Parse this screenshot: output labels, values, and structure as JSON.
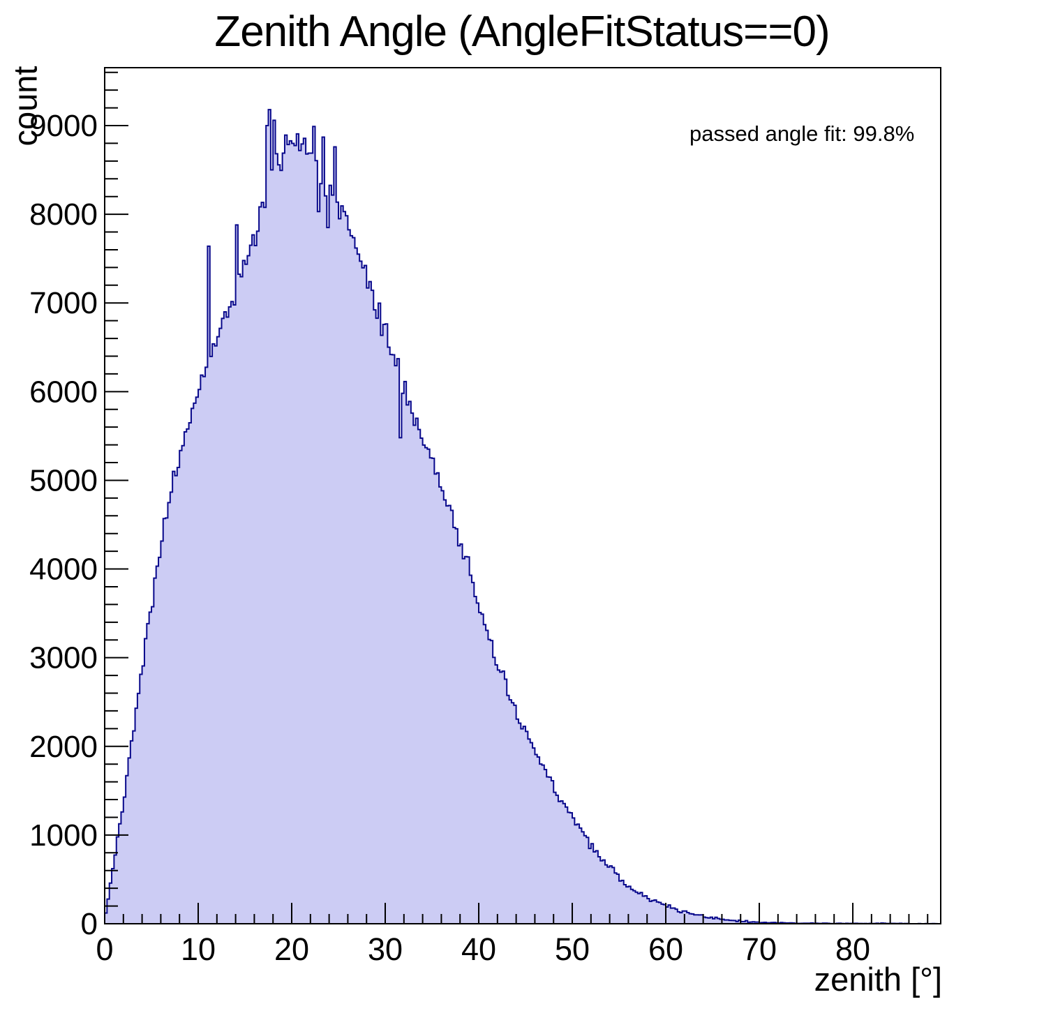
{
  "page": {
    "background": "#ffffff"
  },
  "chart_data": {
    "type": "bar",
    "subtype": "filled-step-histogram",
    "title": "Zenith Angle (AngleFitStatus==0)",
    "xlabel": "zenith [°]",
    "ylabel": "count",
    "annotation": "passed angle fit: 99.8%",
    "xlim": [
      0,
      89.4
    ],
    "ylim": [
      0,
      9653
    ],
    "x_major_ticks": [
      0,
      10,
      20,
      30,
      40,
      50,
      60,
      70,
      80
    ],
    "x_minor_step": 2,
    "y_major_ticks": [
      0,
      1000,
      2000,
      3000,
      4000,
      5000,
      6000,
      7000,
      8000,
      9000
    ],
    "y_minor_step": 200,
    "grid": false,
    "legend_position": "none",
    "bin_width_deg": 0.25,
    "envelope_x_deg": [
      0,
      1,
      2,
      3,
      4,
      5,
      6,
      7,
      8,
      9,
      10,
      11,
      12,
      13,
      14,
      15,
      16,
      17,
      18,
      19,
      20,
      21,
      22,
      23,
      24,
      25,
      26,
      27,
      28,
      29,
      30,
      31,
      32,
      33,
      34,
      35,
      36,
      37,
      38,
      39,
      40,
      41,
      42,
      43,
      44,
      45,
      46,
      47,
      48,
      49,
      50,
      51,
      52,
      53,
      54,
      55,
      56,
      57,
      58,
      59,
      60,
      61,
      62,
      63,
      64,
      65,
      66,
      67,
      68,
      69,
      70,
      71,
      72,
      73,
      74,
      75,
      76,
      77,
      78,
      79,
      80,
      81,
      82,
      83,
      84,
      85,
      86,
      87,
      88,
      89
    ],
    "envelope_counts": [
      30,
      700,
      1400,
      2150,
      2900,
      3600,
      4250,
      4800,
      5250,
      5650,
      6000,
      6320,
      6620,
      6900,
      7160,
      7400,
      7700,
      8050,
      8400,
      8700,
      8870,
      8870,
      8700,
      8450,
      8250,
      8100,
      7850,
      7550,
      7270,
      7000,
      6670,
      6380,
      6030,
      5720,
      5460,
      5250,
      4910,
      4650,
      4300,
      4020,
      3570,
      3270,
      2870,
      2630,
      2370,
      2160,
      1940,
      1740,
      1550,
      1370,
      1210,
      1030,
      870,
      740,
      640,
      530,
      430,
      350,
      290,
      245,
      205,
      165,
      135,
      110,
      88,
      65,
      48,
      38,
      30,
      22,
      16,
      13,
      10,
      8,
      7,
      6,
      5,
      4,
      4,
      3,
      3,
      2,
      2,
      6,
      3,
      5,
      2,
      1,
      1,
      0
    ],
    "peak": {
      "x_deg": 17.7,
      "count": 9180
    },
    "spikes": [
      {
        "x": 11.2,
        "y": 7640
      },
      {
        "x": 14.1,
        "y": 7880
      },
      {
        "x": 17.45,
        "y": 9000
      },
      {
        "x": 17.7,
        "y": 9180
      },
      {
        "x": 17.95,
        "y": 8500
      },
      {
        "x": 18.2,
        "y": 9060
      },
      {
        "x": 22.3,
        "y": 8990
      },
      {
        "x": 22.8,
        "y": 8030
      },
      {
        "x": 23.4,
        "y": 8870
      },
      {
        "x": 23.9,
        "y": 7850
      },
      {
        "x": 24.5,
        "y": 8760
      },
      {
        "x": 25.2,
        "y": 7950
      },
      {
        "x": 31.6,
        "y": 5480
      }
    ],
    "noise": {
      "seed": 42,
      "coeff": 2.6
    },
    "colors": {
      "fill": "#ccccf4",
      "line": "#08088b",
      "axis": "#000000",
      "text": "#000000",
      "background": "#ffffff"
    }
  }
}
